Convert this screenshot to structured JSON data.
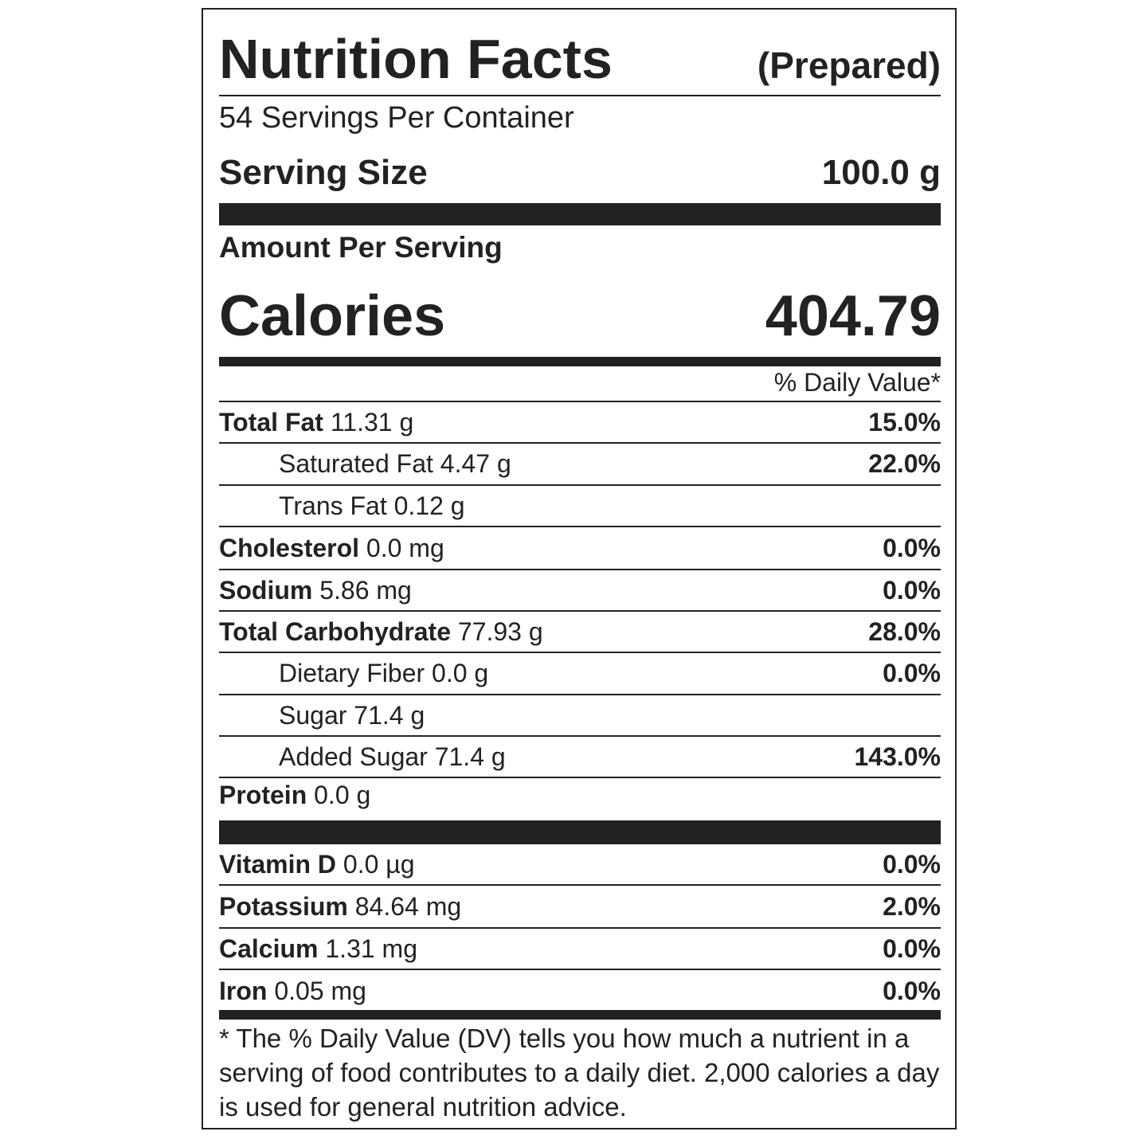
{
  "header": {
    "title": "Nutrition Facts",
    "qualifier": "(Prepared)",
    "servings": "54 Servings Per Container",
    "serving_size_label": "Serving Size",
    "serving_size_value": "100.0 g",
    "amount_label": "Amount Per Serving",
    "calories_label": "Calories",
    "calories_value": "404.79",
    "dv_header": "% Daily Value*"
  },
  "nutrients": [
    {
      "name": "Total Fat",
      "amount": "11.31 g",
      "dv": "15.0%"
    },
    {
      "name": "Saturated Fat",
      "amount": "4.47 g",
      "dv": "22.0%"
    },
    {
      "name": "Trans Fat",
      "amount": "0.12 g"
    },
    {
      "name": "Cholesterol",
      "amount": "0.0 mg",
      "dv": "0.0%"
    },
    {
      "name": "Sodium",
      "amount": "5.86 mg",
      "dv": "0.0%"
    },
    {
      "name": "Total Carbohydrate",
      "amount": "77.93 g",
      "dv": "28.0%"
    },
    {
      "name": "Dietary Fiber",
      "amount": "0.0 g",
      "dv": "0.0%"
    },
    {
      "name": "Sugar",
      "amount": "71.4 g"
    },
    {
      "name": "Added Sugar",
      "amount": "71.4 g",
      "dv": "143.0%"
    },
    {
      "name": "Protein",
      "amount": "0.0 g"
    }
  ],
  "vitamins": [
    {
      "name": "Vitamin D",
      "amount": "0.0 µg",
      "dv": "0.0%"
    },
    {
      "name": "Potassium",
      "amount": "84.64 mg",
      "dv": "2.0%"
    },
    {
      "name": "Calcium",
      "amount": "1.31 mg",
      "dv": "0.0%"
    },
    {
      "name": "Iron",
      "amount": "0.05 mg",
      "dv": "0.0%"
    }
  ],
  "footnote": "* The % Daily Value (DV) tells you how much a nutrient in a serving of food contributes to a daily diet. 2,000 calories a day is used for general nutrition advice."
}
